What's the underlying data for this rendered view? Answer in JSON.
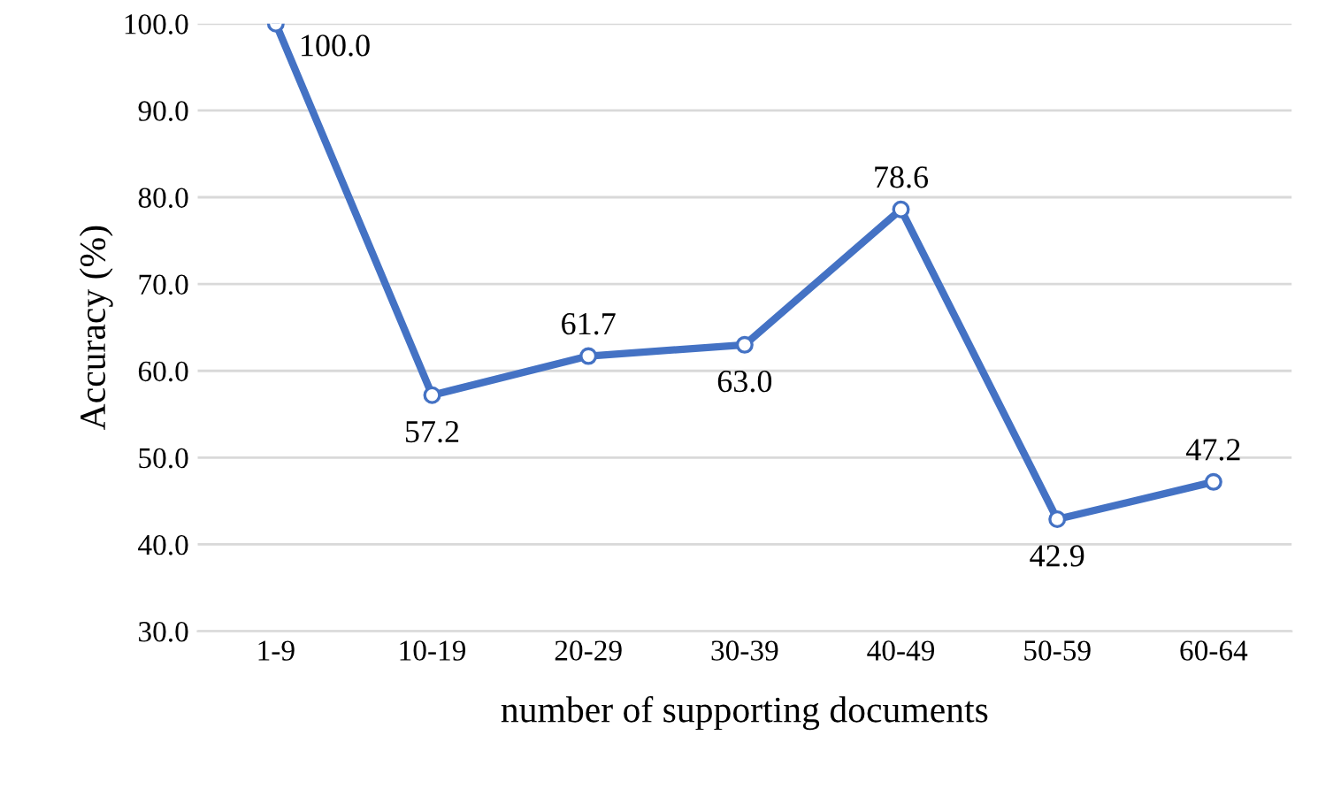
{
  "chart_data": {
    "type": "line",
    "xlabel": "number of supporting documents",
    "ylabel": "Accuracy (%)",
    "categories": [
      "1-9",
      "10-19",
      "20-29",
      "30-39",
      "40-49",
      "50-59",
      "60-64"
    ],
    "series": [
      {
        "color": "#4472c4",
        "values": [
          100.0,
          57.2,
          61.7,
          63.0,
          78.6,
          42.9,
          47.2
        ],
        "value_labels": [
          "100.0",
          "57.2",
          "61.7",
          "63.0",
          "78.6",
          "42.9",
          "47.2"
        ]
      }
    ],
    "ylim": [
      30,
      100
    ],
    "yticks": [
      {
        "value": 30,
        "label": "30.0"
      },
      {
        "value": 40,
        "label": "40.0"
      },
      {
        "value": 50,
        "label": "50.0"
      },
      {
        "value": 60,
        "label": "60.0"
      },
      {
        "value": 70,
        "label": "70.0"
      },
      {
        "value": 80,
        "label": "80.0"
      },
      {
        "value": 90,
        "label": "90.0"
      },
      {
        "value": 100,
        "label": "100.0"
      }
    ],
    "grid": "y",
    "marker": "circle",
    "line_style": "solid",
    "legend": false
  }
}
